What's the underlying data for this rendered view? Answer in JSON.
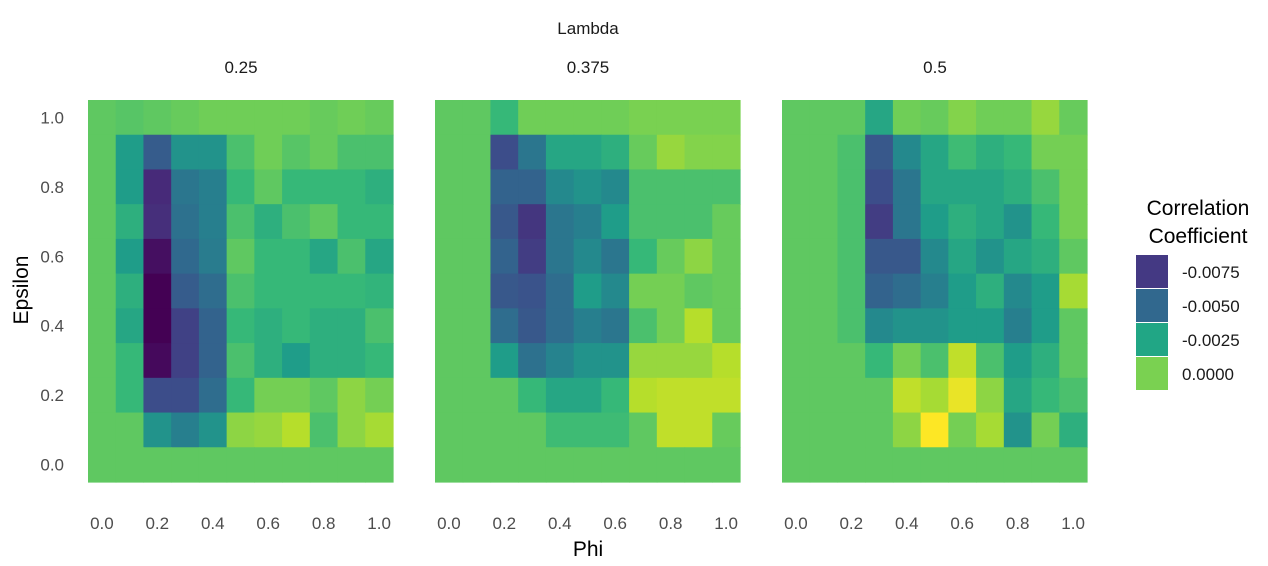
{
  "chart_data": {
    "type": "heatmap",
    "facet_variable": "Lambda",
    "xlabel": "Phi",
    "ylabel": "Epsilon",
    "x_ticks": [
      "0.0",
      "0.2",
      "0.4",
      "0.6",
      "0.8",
      "1.0"
    ],
    "y_ticks": [
      "0.0",
      "0.2",
      "0.4",
      "0.6",
      "0.8",
      "1.0"
    ],
    "x_values": [
      0.0,
      0.1,
      0.2,
      0.3,
      0.4,
      0.5,
      0.6,
      0.7,
      0.8,
      0.9,
      1.0
    ],
    "y_values": [
      0.0,
      0.1,
      0.2,
      0.3,
      0.4,
      0.5,
      0.6,
      0.7,
      0.8,
      0.9,
      1.0
    ],
    "legend": {
      "title_line1": "Correlation",
      "title_line2": "Coefficient",
      "entries": [
        {
          "label": "-0.0075",
          "color": "#443983"
        },
        {
          "label": "-0.0050",
          "color": "#31688e"
        },
        {
          "label": "-0.0025",
          "color": "#21a685"
        },
        {
          "label": "0.0000",
          "color": "#7ad151"
        }
      ]
    },
    "colorscale": {
      "min": -0.0095,
      "max": 0.0032,
      "stops": [
        "#440154",
        "#482878",
        "#3e4989",
        "#31688e",
        "#26828e",
        "#1f9e89",
        "#35b779",
        "#6ece58",
        "#b5de2b",
        "#fde725"
      ]
    },
    "facets": [
      {
        "label": "0.25",
        "rows_top_to_bottom": [
          [
            0.0,
            -0.0002,
            0.0,
            0.0002,
            0.0004,
            0.0004,
            0.0004,
            0.0004,
            0.0002,
            0.0004,
            0.0002
          ],
          [
            0.0,
            -0.0025,
            -0.0058,
            -0.003,
            -0.003,
            -0.0005,
            0.0004,
            -0.0002,
            0.0002,
            -0.0005,
            -0.0005
          ],
          [
            0.0,
            -0.0025,
            -0.008,
            -0.0045,
            -0.004,
            -0.001,
            0.0,
            -0.001,
            -0.001,
            -0.001,
            -0.0015
          ],
          [
            0.0,
            -0.0015,
            -0.0078,
            -0.0048,
            -0.004,
            -0.0005,
            -0.0015,
            -0.0005,
            0.0,
            -0.001,
            -0.001
          ],
          [
            0.0,
            -0.0025,
            -0.009,
            -0.0052,
            -0.0042,
            0.0,
            -0.001,
            -0.001,
            -0.002,
            -0.0005,
            -0.002
          ],
          [
            0.0,
            -0.0015,
            -0.0095,
            -0.0058,
            -0.005,
            -0.0005,
            -0.001,
            -0.001,
            -0.001,
            -0.001,
            -0.0012
          ],
          [
            0.0,
            -0.002,
            -0.0095,
            -0.007,
            -0.0055,
            -0.001,
            -0.0015,
            -0.001,
            -0.0015,
            -0.0015,
            -0.0005
          ],
          [
            0.0,
            -0.001,
            -0.0092,
            -0.007,
            -0.0055,
            -0.0005,
            -0.0015,
            -0.0025,
            -0.0015,
            -0.0015,
            -0.001
          ],
          [
            0.0,
            -0.001,
            -0.0065,
            -0.0065,
            -0.005,
            -0.001,
            0.0005,
            0.0005,
            0.0,
            0.001,
            0.0005
          ],
          [
            0.0,
            0.0,
            -0.003,
            -0.004,
            -0.003,
            0.001,
            0.0012,
            0.0018,
            -0.0005,
            0.001,
            0.0015
          ],
          [
            0.0,
            0.0,
            0.0,
            0.0,
            0.0,
            0.0,
            0.0,
            0.0,
            0.0,
            0.0,
            0.0
          ]
        ]
      },
      {
        "label": "0.375",
        "rows_top_to_bottom": [
          [
            0.0,
            0.0,
            -0.001,
            0.0004,
            0.0004,
            0.0004,
            0.0004,
            0.0006,
            0.0006,
            0.0006,
            0.0006
          ],
          [
            0.0,
            0.0,
            -0.0065,
            -0.0045,
            -0.002,
            -0.002,
            -0.0015,
            0.0002,
            0.0012,
            0.0008,
            0.0008
          ],
          [
            0.0,
            0.0,
            -0.0055,
            -0.0055,
            -0.0035,
            -0.003,
            -0.0035,
            -0.0005,
            -0.0005,
            -0.0005,
            -0.0005
          ],
          [
            0.0,
            0.0,
            -0.006,
            -0.0075,
            -0.0045,
            -0.004,
            -0.0025,
            -0.0005,
            -0.0005,
            -0.0005,
            0.0002
          ],
          [
            0.0,
            0.0,
            -0.0055,
            -0.0072,
            -0.0045,
            -0.0035,
            -0.0045,
            -0.001,
            0.0002,
            0.001,
            0.0002
          ],
          [
            0.0,
            0.0,
            -0.006,
            -0.0062,
            -0.005,
            -0.0025,
            -0.0035,
            0.0005,
            0.0005,
            0.0,
            0.0002
          ],
          [
            0.0,
            0.0,
            -0.005,
            -0.006,
            -0.005,
            -0.004,
            -0.0045,
            -0.0005,
            0.0005,
            0.0018,
            0.0002
          ],
          [
            0.0,
            0.0,
            -0.0025,
            -0.0048,
            -0.0038,
            -0.003,
            -0.003,
            0.0012,
            0.0012,
            0.0012,
            0.0018
          ],
          [
            0.0,
            0.0,
            0.0,
            -0.001,
            -0.002,
            -0.002,
            -0.001,
            0.0018,
            0.002,
            0.002,
            0.002
          ],
          [
            0.0,
            0.0,
            0.0,
            0.0,
            -0.0008,
            -0.0008,
            -0.0008,
            0.0,
            0.002,
            0.002,
            0.0002
          ],
          [
            0.0,
            0.0,
            0.0,
            0.0,
            0.0,
            0.0,
            0.0,
            0.0,
            0.0,
            0.0,
            0.0
          ]
        ]
      },
      {
        "label": "0.5",
        "rows_top_to_bottom": [
          [
            0.0,
            0.0,
            0.0,
            -0.002,
            0.0004,
            0.0002,
            0.0008,
            0.0004,
            0.0004,
            0.0012,
            0.0002
          ],
          [
            0.0,
            0.0,
            -0.0005,
            -0.006,
            -0.0035,
            -0.002,
            -0.0008,
            -0.0015,
            -0.001,
            0.0005,
            0.0005
          ],
          [
            0.0,
            0.0,
            -0.0005,
            -0.0065,
            -0.0045,
            -0.002,
            -0.002,
            -0.002,
            -0.0015,
            -0.0005,
            0.0005
          ],
          [
            0.0,
            0.0,
            -0.0005,
            -0.0072,
            -0.0045,
            -0.0025,
            -0.0015,
            -0.002,
            -0.003,
            -0.001,
            0.0005
          ],
          [
            0.0,
            0.0,
            -0.0005,
            -0.006,
            -0.006,
            -0.0035,
            -0.002,
            -0.003,
            -0.002,
            -0.0015,
            0.0
          ],
          [
            0.0,
            0.0,
            -0.0005,
            -0.0055,
            -0.005,
            -0.004,
            -0.0025,
            -0.0015,
            -0.0035,
            -0.0025,
            0.0015
          ],
          [
            0.0,
            0.0,
            -0.0005,
            -0.0035,
            -0.003,
            -0.003,
            -0.0025,
            -0.0025,
            -0.004,
            -0.0025,
            0.0
          ],
          [
            0.0,
            0.0,
            0.0,
            -0.001,
            0.0005,
            -0.0005,
            0.002,
            -0.0005,
            -0.0025,
            -0.0015,
            0.0
          ],
          [
            0.0,
            0.0,
            0.0,
            0.0,
            0.002,
            0.0015,
            0.0028,
            0.001,
            -0.002,
            -0.001,
            -0.0005
          ],
          [
            0.0,
            0.0,
            0.0,
            0.0,
            0.001,
            0.0032,
            0.0005,
            0.0015,
            -0.003,
            0.0005,
            -0.0015
          ],
          [
            0.0,
            0.0,
            0.0,
            0.0,
            0.0,
            0.0,
            0.0,
            0.0,
            0.0,
            0.0,
            0.0
          ]
        ]
      }
    ]
  }
}
